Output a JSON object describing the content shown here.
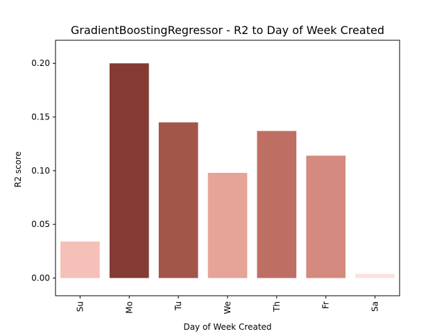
{
  "chart_data": {
    "type": "bar",
    "title": "GradientBoostingRegressor - R2 to Day of Week Created",
    "xlabel": "Day of Week Created",
    "ylabel": "R2 score",
    "categories": [
      "Su",
      "Mo",
      "Tu",
      "We",
      "Th",
      "Fr",
      "Sa"
    ],
    "values": [
      0.034,
      0.2,
      0.145,
      0.098,
      0.137,
      0.114,
      0.004
    ],
    "bar_colors": [
      "#f4c0b8",
      "#833b34",
      "#a25549",
      "#e6a398",
      "#be6e62",
      "#d48a7e",
      "#f9e3de"
    ],
    "ylim": [
      -0.0165,
      0.2215
    ],
    "yticks": [
      0.0,
      0.05,
      0.1,
      0.15,
      0.2
    ],
    "ytick_labels": [
      "0.00",
      "0.05",
      "0.10",
      "0.15",
      "0.20"
    ],
    "xtick_rotation": "vertical",
    "grid": false,
    "legend": "none"
  }
}
